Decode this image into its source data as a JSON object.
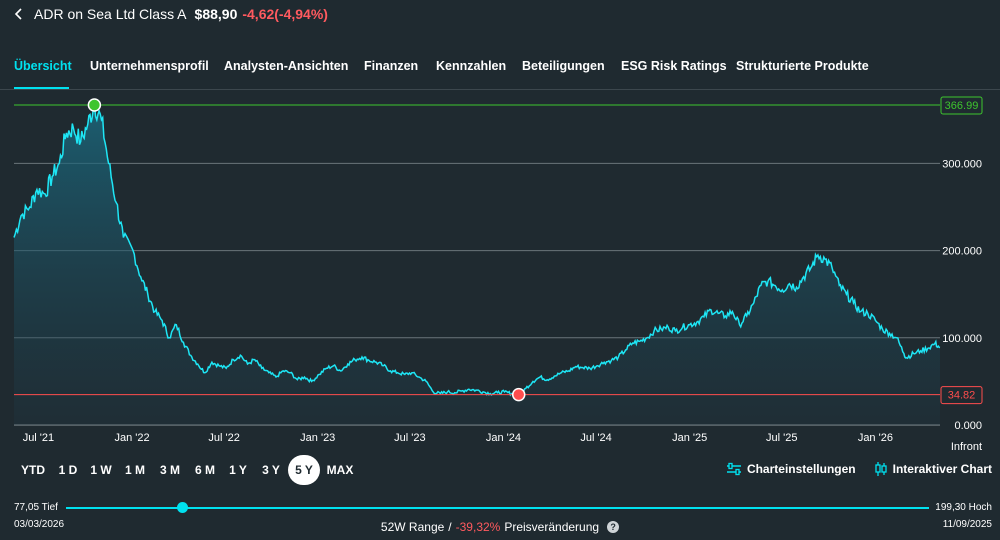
{
  "header": {
    "back_icon": "chevron-left-icon",
    "title": "ADR on Sea Ltd Class A",
    "price": "$88,90",
    "change": "-4,62(-4,94%)"
  },
  "tabs": [
    {
      "label": "Übersicht",
      "active": true
    },
    {
      "label": "Unternehmensprofil"
    },
    {
      "label": "Analysten-Ansichten"
    },
    {
      "label": "Finanzen"
    },
    {
      "label": "Kennzahlen"
    },
    {
      "label": "Beteiligungen"
    },
    {
      "label": "ESG Risk Ratings"
    },
    {
      "label": "Strukturierte Produkte"
    }
  ],
  "chart_data": {
    "type": "area",
    "ylim": [
      0,
      366.99
    ],
    "ytick_labels": [
      "0.000",
      "100.000",
      "200.000",
      "300.000"
    ],
    "ytick_values": [
      0,
      100,
      200,
      300
    ],
    "x_labels": [
      "Jul '21",
      "Jan '22",
      "Jul '22",
      "Jan '23",
      "Jul '23",
      "Jan '24",
      "Jul '24",
      "Jan '25",
      "Jul '25",
      "Jan '26"
    ],
    "x_label_dates": [
      "2021-07-01",
      "2022-01-01",
      "2022-07-01",
      "2023-01-01",
      "2023-07-01",
      "2024-01-01",
      "2024-07-01",
      "2025-01-01",
      "2025-07-01",
      "2026-01-01"
    ],
    "series": [
      {
        "points": [
          [
            "2021-05-14",
            215
          ],
          [
            "2021-05-28",
            240
          ],
          [
            "2021-06-14",
            250
          ],
          [
            "2021-06-28",
            270
          ],
          [
            "2021-07-14",
            265
          ],
          [
            "2021-07-28",
            285
          ],
          [
            "2021-08-11",
            300
          ],
          [
            "2021-08-25",
            335
          ],
          [
            "2021-09-08",
            340
          ],
          [
            "2021-09-22",
            325
          ],
          [
            "2021-10-06",
            345
          ],
          [
            "2021-10-19",
            366.99
          ],
          [
            "2021-11-02",
            350
          ],
          [
            "2021-11-16",
            300
          ],
          [
            "2021-12-01",
            255
          ],
          [
            "2021-12-15",
            215
          ],
          [
            "2022-01-03",
            200
          ],
          [
            "2022-01-18",
            170
          ],
          [
            "2022-02-01",
            150
          ],
          [
            "2022-02-15",
            130
          ],
          [
            "2022-03-01",
            120
          ],
          [
            "2022-03-15",
            100
          ],
          [
            "2022-03-29",
            115
          ],
          [
            "2022-04-12",
            95
          ],
          [
            "2022-04-26",
            80
          ],
          [
            "2022-05-10",
            70
          ],
          [
            "2022-05-24",
            60
          ],
          [
            "2022-06-07",
            72
          ],
          [
            "2022-06-21",
            68
          ],
          [
            "2022-07-05",
            65
          ],
          [
            "2022-07-19",
            75
          ],
          [
            "2022-08-02",
            80
          ],
          [
            "2022-08-16",
            70
          ],
          [
            "2022-08-30",
            75
          ],
          [
            "2022-09-13",
            65
          ],
          [
            "2022-09-27",
            60
          ],
          [
            "2022-10-11",
            55
          ],
          [
            "2022-10-25",
            62
          ],
          [
            "2022-11-08",
            60
          ],
          [
            "2022-11-22",
            52
          ],
          [
            "2022-12-06",
            55
          ],
          [
            "2022-12-20",
            50
          ],
          [
            "2023-01-04",
            58
          ],
          [
            "2023-01-18",
            65
          ],
          [
            "2023-02-01",
            68
          ],
          [
            "2023-02-15",
            62
          ],
          [
            "2023-03-01",
            70
          ],
          [
            "2023-03-15",
            75
          ],
          [
            "2023-03-29",
            78
          ],
          [
            "2023-04-12",
            74
          ],
          [
            "2023-04-26",
            72
          ],
          [
            "2023-05-10",
            68
          ],
          [
            "2023-05-24",
            62
          ],
          [
            "2023-06-07",
            60
          ],
          [
            "2023-06-21",
            58
          ],
          [
            "2023-07-05",
            60
          ],
          [
            "2023-07-19",
            55
          ],
          [
            "2023-08-02",
            50
          ],
          [
            "2023-08-16",
            38
          ],
          [
            "2023-08-30",
            36
          ],
          [
            "2023-09-13",
            38
          ],
          [
            "2023-09-27",
            37
          ],
          [
            "2023-10-11",
            39
          ],
          [
            "2023-10-25",
            41
          ],
          [
            "2023-11-08",
            40
          ],
          [
            "2023-11-22",
            38
          ],
          [
            "2023-12-06",
            36
          ],
          [
            "2023-12-20",
            37
          ],
          [
            "2024-01-03",
            38
          ],
          [
            "2024-01-17",
            36
          ],
          [
            "2024-01-31",
            34.82
          ],
          [
            "2024-02-14",
            42
          ],
          [
            "2024-02-28",
            50
          ],
          [
            "2024-03-13",
            55
          ],
          [
            "2024-03-27",
            52
          ],
          [
            "2024-04-10",
            56
          ],
          [
            "2024-04-24",
            60
          ],
          [
            "2024-05-08",
            62
          ],
          [
            "2024-05-22",
            67
          ],
          [
            "2024-06-05",
            66
          ],
          [
            "2024-06-19",
            65
          ],
          [
            "2024-07-03",
            68
          ],
          [
            "2024-07-17",
            72
          ],
          [
            "2024-07-31",
            74
          ],
          [
            "2024-08-14",
            78
          ],
          [
            "2024-08-28",
            86
          ],
          [
            "2024-09-11",
            94
          ],
          [
            "2024-09-25",
            96
          ],
          [
            "2024-10-09",
            100
          ],
          [
            "2024-10-23",
            108
          ],
          [
            "2024-11-06",
            110
          ],
          [
            "2024-11-20",
            112
          ],
          [
            "2024-12-04",
            108
          ],
          [
            "2024-12-18",
            112
          ],
          [
            "2025-01-01",
            115
          ],
          [
            "2025-01-15",
            118
          ],
          [
            "2025-01-29",
            124
          ],
          [
            "2025-02-12",
            132
          ],
          [
            "2025-02-26",
            128
          ],
          [
            "2025-03-12",
            125
          ],
          [
            "2025-03-26",
            130
          ],
          [
            "2025-04-09",
            115
          ],
          [
            "2025-04-23",
            125
          ],
          [
            "2025-05-07",
            140
          ],
          [
            "2025-05-21",
            160
          ],
          [
            "2025-06-04",
            165
          ],
          [
            "2025-06-18",
            160
          ],
          [
            "2025-07-02",
            155
          ],
          [
            "2025-07-16",
            162
          ],
          [
            "2025-07-30",
            158
          ],
          [
            "2025-08-13",
            170
          ],
          [
            "2025-08-27",
            180
          ],
          [
            "2025-09-10",
            195
          ],
          [
            "2025-09-24",
            190
          ],
          [
            "2025-10-08",
            180
          ],
          [
            "2025-10-22",
            160
          ],
          [
            "2025-11-05",
            150
          ],
          [
            "2025-11-19",
            140
          ],
          [
            "2025-12-03",
            130
          ],
          [
            "2025-12-17",
            128
          ],
          [
            "2026-01-01",
            120
          ],
          [
            "2026-01-15",
            110
          ],
          [
            "2026-01-29",
            105
          ],
          [
            "2026-02-12",
            100
          ],
          [
            "2026-02-26",
            82
          ],
          [
            "2026-03-03",
            77.05
          ],
          [
            "2026-03-17",
            82
          ],
          [
            "2026-03-31",
            85
          ],
          [
            "2026-04-14",
            88
          ],
          [
            "2026-04-28",
            93.52
          ],
          [
            "2026-05-08",
            88.9
          ]
        ]
      }
    ],
    "max": {
      "value": 366.99,
      "label": "366.99",
      "date": "2021-10-19",
      "color": "#3ec52e"
    },
    "min": {
      "value": 34.82,
      "label": "34.82",
      "date": "2024-01-31",
      "color": "#ff4d4d"
    },
    "line_color": "#1ee6f5",
    "grid": true,
    "source_label": "Infront"
  },
  "ranges": [
    {
      "label": "YTD"
    },
    {
      "label": "1 D"
    },
    {
      "label": "1 W"
    },
    {
      "label": "1 M"
    },
    {
      "label": "3 M"
    },
    {
      "label": "6 M"
    },
    {
      "label": "1 Y"
    },
    {
      "label": "3 Y"
    },
    {
      "label": "5 Y",
      "active": true
    },
    {
      "label": "MAX"
    }
  ],
  "tools": {
    "settings_label": "Charteinstellungen",
    "settings_icon": "sliders-icon",
    "interactive_label": "Interaktiver Chart",
    "interactive_icon": "candlestick-icon"
  },
  "range52": {
    "low_label": "77,05 Tief",
    "high_label": "199,30 Hoch",
    "low_date": "03/03/2026",
    "high_date": "11/09/2025",
    "title": "52W Range",
    "sep": "/",
    "change_pct": "-39,32%",
    "change_label": "Preisveränderung",
    "help_icon": "question-icon",
    "position": 0.135
  }
}
